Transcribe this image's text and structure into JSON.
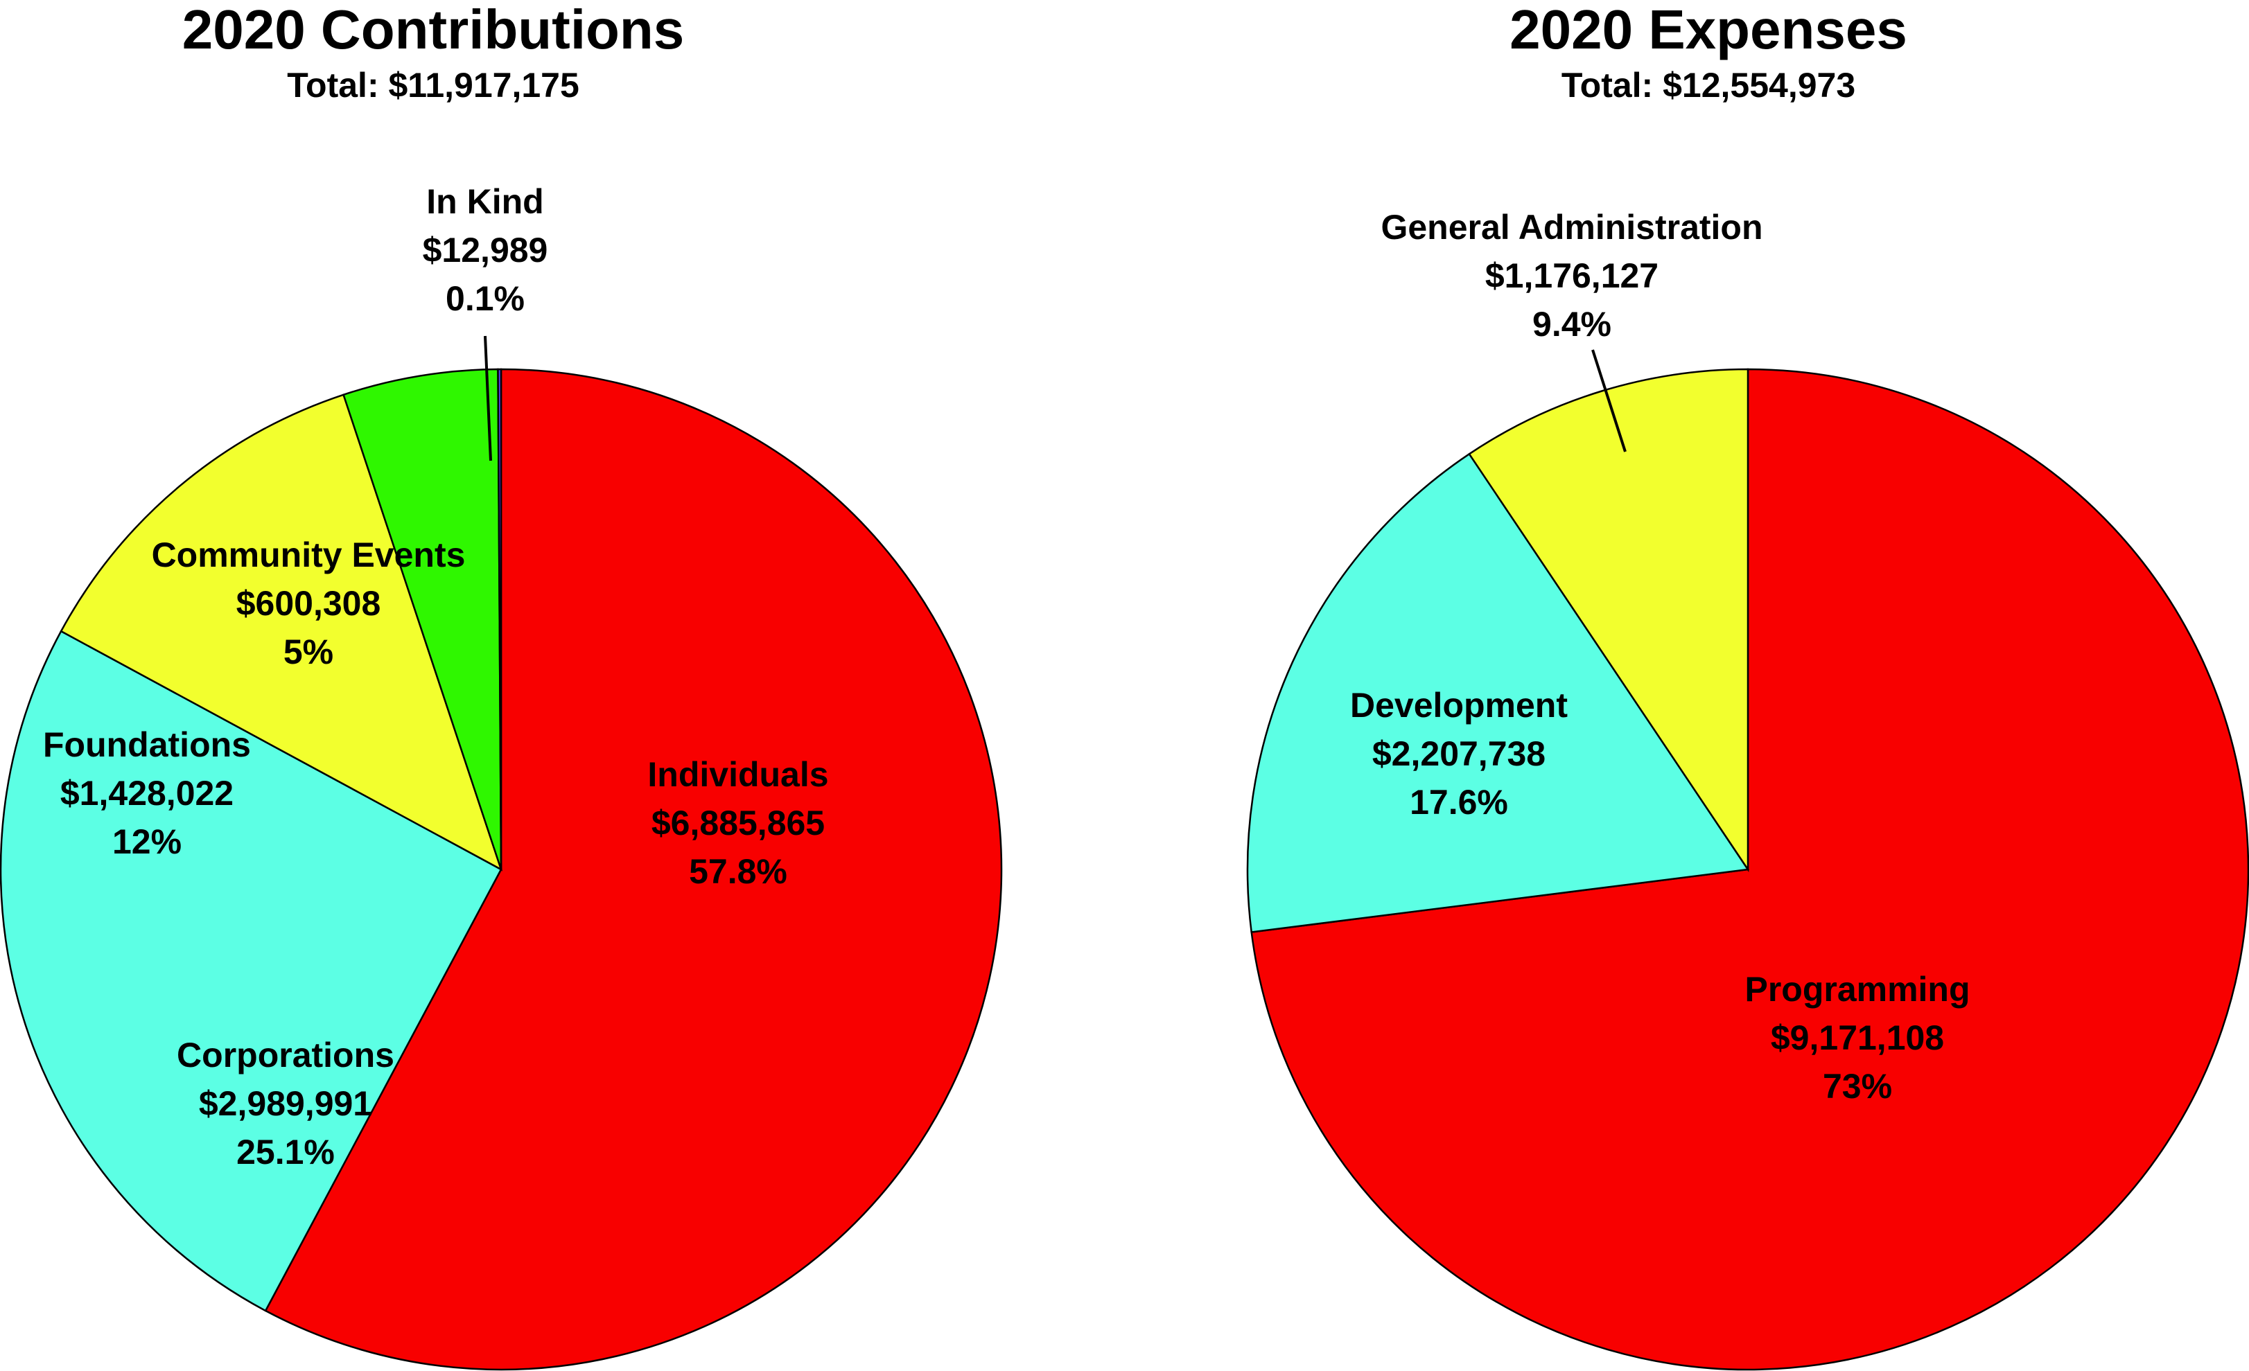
{
  "chart_data": [
    {
      "type": "pie",
      "title": "2020 Contributions",
      "subtitle": "Total: $11,917,175",
      "slices": [
        {
          "name": "Individuals",
          "amount": "$6,885,865",
          "percent": "57.8%",
          "value": 57.8,
          "color": "#f80000"
        },
        {
          "name": "Corporations",
          "amount": "$2,989,991",
          "percent": "25.1%",
          "value": 25.1,
          "color": "#5cffe4"
        },
        {
          "name": "Foundations",
          "amount": "$1,428,022",
          "percent": "12%",
          "value": 12.0,
          "color": "#f2ff2e"
        },
        {
          "name": "Community Events",
          "amount": "$600,308",
          "percent": "5%",
          "value": 5.0,
          "color": "#2ff700"
        },
        {
          "name": "In Kind",
          "amount": "$12,989",
          "percent": "0.1%",
          "value": 0.1,
          "color": "#5b3cf0"
        }
      ]
    },
    {
      "type": "pie",
      "title": "2020 Expenses",
      "subtitle": "Total: $12,554,973",
      "slices": [
        {
          "name": "Programming",
          "amount": "$9,171,108",
          "percent": "73%",
          "value": 73.0,
          "color": "#f80000"
        },
        {
          "name": "Development",
          "amount": "$2,207,738",
          "percent": "17.6%",
          "value": 17.6,
          "color": "#5cffe4"
        },
        {
          "name": "General Administration",
          "amount": "$1,176,127",
          "percent": "9.4%",
          "value": 9.4,
          "color": "#f2ff2e"
        }
      ]
    }
  ]
}
